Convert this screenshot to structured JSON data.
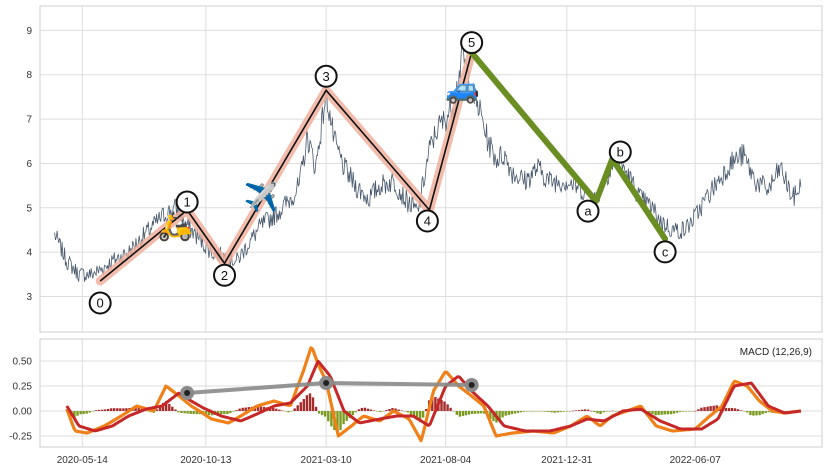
{
  "chart_data": [
    {
      "type": "line",
      "title": "",
      "xlabel": "",
      "ylabel": "",
      "ylim": [
        2.2,
        9.55
      ],
      "yticks": [
        3,
        4,
        5,
        6,
        7,
        8,
        9
      ],
      "grid": true,
      "series": [
        {
          "key": "price",
          "color": "#4a5a6e",
          "x": [
            "2020-04-10",
            "2020-04-25",
            "2020-05-10",
            "2020-05-25",
            "2020-06-05",
            "2020-06-20",
            "2020-07-10",
            "2020-07-30",
            "2020-08-20",
            "2020-09-05",
            "2020-09-20",
            "2020-10-05",
            "2020-10-20",
            "2020-11-05",
            "2020-11-20",
            "2020-12-05",
            "2020-12-20",
            "2021-01-10",
            "2021-01-25",
            "2021-02-05",
            "2021-02-15",
            "2021-02-25",
            "2021-03-10",
            "2021-03-20",
            "2021-04-01",
            "2021-04-15",
            "2021-05-01",
            "2021-05-15",
            "2021-06-01",
            "2021-06-15",
            "2021-07-01",
            "2021-07-15",
            "2021-07-25",
            "2021-08-04",
            "2021-08-15",
            "2021-08-25",
            "2021-09-05",
            "2021-09-15",
            "2021-09-25",
            "2021-10-05",
            "2021-10-15",
            "2021-10-25",
            "2021-11-10",
            "2021-11-25",
            "2021-12-10",
            "2021-12-31",
            "2022-01-20",
            "2022-02-05",
            "2022-02-20",
            "2022-03-05",
            "2022-03-20",
            "2022-04-01",
            "2022-04-15",
            "2022-04-25",
            "2022-05-10",
            "2022-05-25",
            "2022-06-07",
            "2022-06-20",
            "2022-07-05",
            "2022-07-20",
            "2022-08-05",
            "2022-08-20",
            "2022-09-05",
            "2022-09-20",
            "2022-10-05",
            "2022-10-15"
          ],
          "values": [
            4.4,
            3.8,
            3.5,
            3.5,
            3.6,
            3.8,
            4.0,
            4.4,
            4.8,
            5.0,
            4.6,
            4.3,
            4.0,
            3.9,
            3.8,
            4.2,
            4.6,
            4.9,
            5.2,
            5.5,
            6.6,
            5.9,
            7.6,
            6.5,
            5.9,
            5.5,
            5.2,
            5.5,
            5.6,
            5.2,
            4.9,
            6.3,
            6.8,
            7.0,
            7.4,
            8.5,
            7.6,
            7.2,
            6.5,
            6.1,
            6.2,
            5.8,
            5.6,
            5.9,
            5.6,
            5.6,
            5.4,
            5.2,
            5.8,
            6.1,
            5.6,
            5.2,
            5.0,
            4.7,
            4.5,
            4.5,
            4.8,
            5.2,
            5.6,
            6.0,
            6.2,
            5.6,
            5.4,
            5.9,
            5.2,
            5.5
          ]
        }
      ],
      "wave_points": [
        {
          "label": "0",
          "x": "2020-06-05",
          "y": 3.35
        },
        {
          "label": "1",
          "x": "2020-09-20",
          "y": 4.95
        },
        {
          "label": "2",
          "x": "2020-11-05",
          "y": 3.75
        },
        {
          "label": "3",
          "x": "2021-03-10",
          "y": 7.65
        },
        {
          "label": "4",
          "x": "2021-07-15",
          "y": 4.95
        },
        {
          "label": "5",
          "x": "2021-09-05",
          "y": 8.5
        },
        {
          "label": "a",
          "x": "2022-02-05",
          "y": 5.15
        },
        {
          "label": "b",
          "x": "2022-02-25",
          "y": 6.1
        },
        {
          "label": "c",
          "x": "2022-05-01",
          "y": 4.3
        }
      ],
      "impulse_color": "#111111",
      "impulse_halo_color": "#f0b09e",
      "correction_color": "#6b8e23",
      "icons": [
        {
          "name": "scooter-icon",
          "glyph": "🛵",
          "x": "2020-09-05",
          "y": 4.6
        },
        {
          "name": "airplane-icon",
          "glyph": "✈️",
          "x": "2020-12-20",
          "y": 5.25
        },
        {
          "name": "car-icon",
          "glyph": "🚙",
          "x": "2021-08-25",
          "y": 7.7
        }
      ]
    },
    {
      "type": "line",
      "title": "",
      "legend": "MACD (12,26,9)",
      "legend_position": "top-right",
      "ylim": [
        -0.36,
        0.72
      ],
      "yticks": [
        -0.25,
        0.0,
        0.25,
        0.5
      ],
      "ytick_labels": [
        "-0.25",
        "0.00",
        "0.25",
        "0.50"
      ],
      "xticks": [
        "2020-05-14",
        "2020-10-13",
        "2021-03-10",
        "2021-08-04",
        "2021-12-31",
        "2022-06-07"
      ],
      "grid": true,
      "series": [
        {
          "key": "macd",
          "color": "#f08018",
          "x": [
            "2020-04-25",
            "2020-05-05",
            "2020-05-20",
            "2020-06-10",
            "2020-07-01",
            "2020-07-20",
            "2020-08-10",
            "2020-08-25",
            "2020-09-10",
            "2020-09-25",
            "2020-10-05",
            "2020-10-20",
            "2020-11-10",
            "2020-11-25",
            "2020-12-15",
            "2021-01-05",
            "2021-01-25",
            "2021-02-10",
            "2021-02-20",
            "2021-03-01",
            "2021-03-10",
            "2021-03-25",
            "2021-04-10",
            "2021-04-25",
            "2021-05-15",
            "2021-06-01",
            "2021-06-20",
            "2021-07-05",
            "2021-07-20",
            "2021-08-04",
            "2021-08-20",
            "2021-09-05",
            "2021-09-20",
            "2021-10-05",
            "2021-10-25",
            "2021-11-20",
            "2021-12-15",
            "2022-01-05",
            "2022-01-25",
            "2022-02-10",
            "2022-02-25",
            "2022-03-15",
            "2022-04-01",
            "2022-04-20",
            "2022-05-10",
            "2022-06-07",
            "2022-06-25",
            "2022-07-10",
            "2022-07-25",
            "2022-08-10",
            "2022-08-25",
            "2022-09-10",
            "2022-09-25",
            "2022-10-15"
          ],
          "values": [
            0.02,
            -0.2,
            -0.22,
            -0.15,
            -0.05,
            0.05,
            0.0,
            0.25,
            0.15,
            0.05,
            0.0,
            -0.08,
            -0.12,
            -0.05,
            0.05,
            0.1,
            0.05,
            0.4,
            0.65,
            0.45,
            0.3,
            -0.25,
            -0.15,
            -0.05,
            -0.1,
            0.0,
            -0.08,
            -0.3,
            0.2,
            0.4,
            0.25,
            0.15,
            0.05,
            -0.25,
            -0.22,
            -0.2,
            -0.22,
            -0.15,
            -0.05,
            -0.15,
            -0.05,
            0.0,
            0.05,
            -0.15,
            -0.2,
            -0.18,
            -0.05,
            0.05,
            0.3,
            0.25,
            0.1,
            0.0,
            -0.02,
            0.0
          ]
        },
        {
          "key": "signal",
          "color": "#c62828",
          "x": [
            "2020-04-25",
            "2020-05-10",
            "2020-05-30",
            "2020-06-20",
            "2020-07-10",
            "2020-08-01",
            "2020-08-20",
            "2020-09-10",
            "2020-09-25",
            "2020-10-10",
            "2020-11-01",
            "2020-11-25",
            "2020-12-15",
            "2021-01-05",
            "2021-01-25",
            "2021-02-15",
            "2021-02-28",
            "2021-03-15",
            "2021-04-01",
            "2021-04-20",
            "2021-05-15",
            "2021-06-05",
            "2021-06-25",
            "2021-07-15",
            "2021-08-04",
            "2021-08-20",
            "2021-09-05",
            "2021-09-25",
            "2021-10-15",
            "2021-11-10",
            "2021-12-10",
            "2022-01-05",
            "2022-01-25",
            "2022-02-15",
            "2022-03-10",
            "2022-04-01",
            "2022-04-25",
            "2022-05-20",
            "2022-06-15",
            "2022-07-05",
            "2022-07-25",
            "2022-08-15",
            "2022-09-05",
            "2022-09-25",
            "2022-10-15"
          ],
          "values": [
            0.05,
            -0.15,
            -0.2,
            -0.15,
            -0.05,
            0.02,
            0.05,
            0.18,
            0.1,
            0.03,
            -0.05,
            -0.1,
            -0.03,
            0.05,
            0.08,
            0.25,
            0.5,
            0.35,
            0.0,
            -0.12,
            -0.08,
            -0.05,
            -0.05,
            -0.15,
            0.25,
            0.35,
            0.2,
            0.05,
            -0.15,
            -0.2,
            -0.2,
            -0.15,
            -0.08,
            -0.1,
            0.0,
            0.02,
            -0.1,
            -0.18,
            -0.18,
            -0.08,
            0.25,
            0.28,
            0.05,
            -0.02,
            0.0
          ]
        },
        {
          "key": "trend",
          "color": "#8a8a8a",
          "x": [
            "2020-09-20",
            "2021-03-10",
            "2021-09-05"
          ],
          "values": [
            0.18,
            0.28,
            0.26
          ]
        }
      ],
      "histogram_up_color": "#a52a2a",
      "histogram_down_color": "#7a9a1e"
    }
  ]
}
